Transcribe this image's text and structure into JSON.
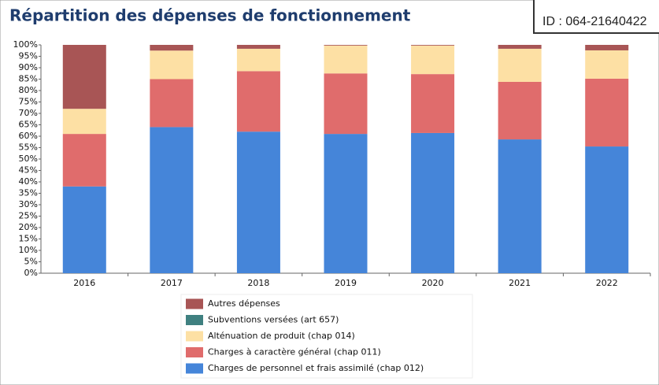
{
  "id_label": "ID : 064-21640422",
  "chart_data": {
    "type": "stacked_bar",
    "title": "Répartition des dépenses de fonctionnement",
    "categories": [
      "2016",
      "2017",
      "2018",
      "2019",
      "2020",
      "2021",
      "2022"
    ],
    "series": [
      {
        "name": "Charges de personnel et frais assimilé (chap 012)",
        "color": "#4585d9",
        "values": [
          38,
          64,
          62,
          61,
          61.4,
          58.6,
          55.5
        ]
      },
      {
        "name": "Charges à caractère général (chap 011)",
        "color": "#e06c6c",
        "values": [
          23,
          21,
          26.5,
          26.5,
          25.8,
          25.2,
          29.7
        ]
      },
      {
        "name": "Alténuation de produit (chap 014)",
        "color": "#fde0a4",
        "values": [
          11,
          12.5,
          9.8,
          12.2,
          12.5,
          14.5,
          12.4
        ]
      },
      {
        "name": "Subventions versées (art 657)",
        "color": "#3f8080",
        "values": [
          0,
          0,
          0,
          0,
          0,
          0,
          0
        ]
      },
      {
        "name": "Autres dépenses",
        "color": "#a85555",
        "values": [
          28,
          2.5,
          1.7,
          0.3,
          0.3,
          1.7,
          2.4
        ]
      }
    ],
    "ylim": [
      0,
      100
    ],
    "yticks": [
      {
        "value": 0,
        "label": "0%"
      },
      {
        "value": 5,
        "label": "5%"
      },
      {
        "value": 10,
        "label": "10%"
      },
      {
        "value": 15,
        "label": "15%"
      },
      {
        "value": 20,
        "label": "20%"
      },
      {
        "value": 25,
        "label": "25%"
      },
      {
        "value": 30,
        "label": "30%"
      },
      {
        "value": 35,
        "label": "35%"
      },
      {
        "value": 40,
        "label": "40%"
      },
      {
        "value": 45,
        "label": "45%"
      },
      {
        "value": 50,
        "label": "50%"
      },
      {
        "value": 55,
        "label": "55%"
      },
      {
        "value": 60,
        "label": "60%"
      },
      {
        "value": 65,
        "label": "65%"
      },
      {
        "value": 70,
        "label": "70%"
      },
      {
        "value": 75,
        "label": "75%"
      },
      {
        "value": 80,
        "label": "80%"
      },
      {
        "value": 85,
        "label": "85%"
      },
      {
        "value": 90,
        "label": "90%"
      },
      {
        "value": 95,
        "label": "95%"
      },
      {
        "value": 100,
        "label": "100%"
      }
    ],
    "legend": "bottom"
  }
}
